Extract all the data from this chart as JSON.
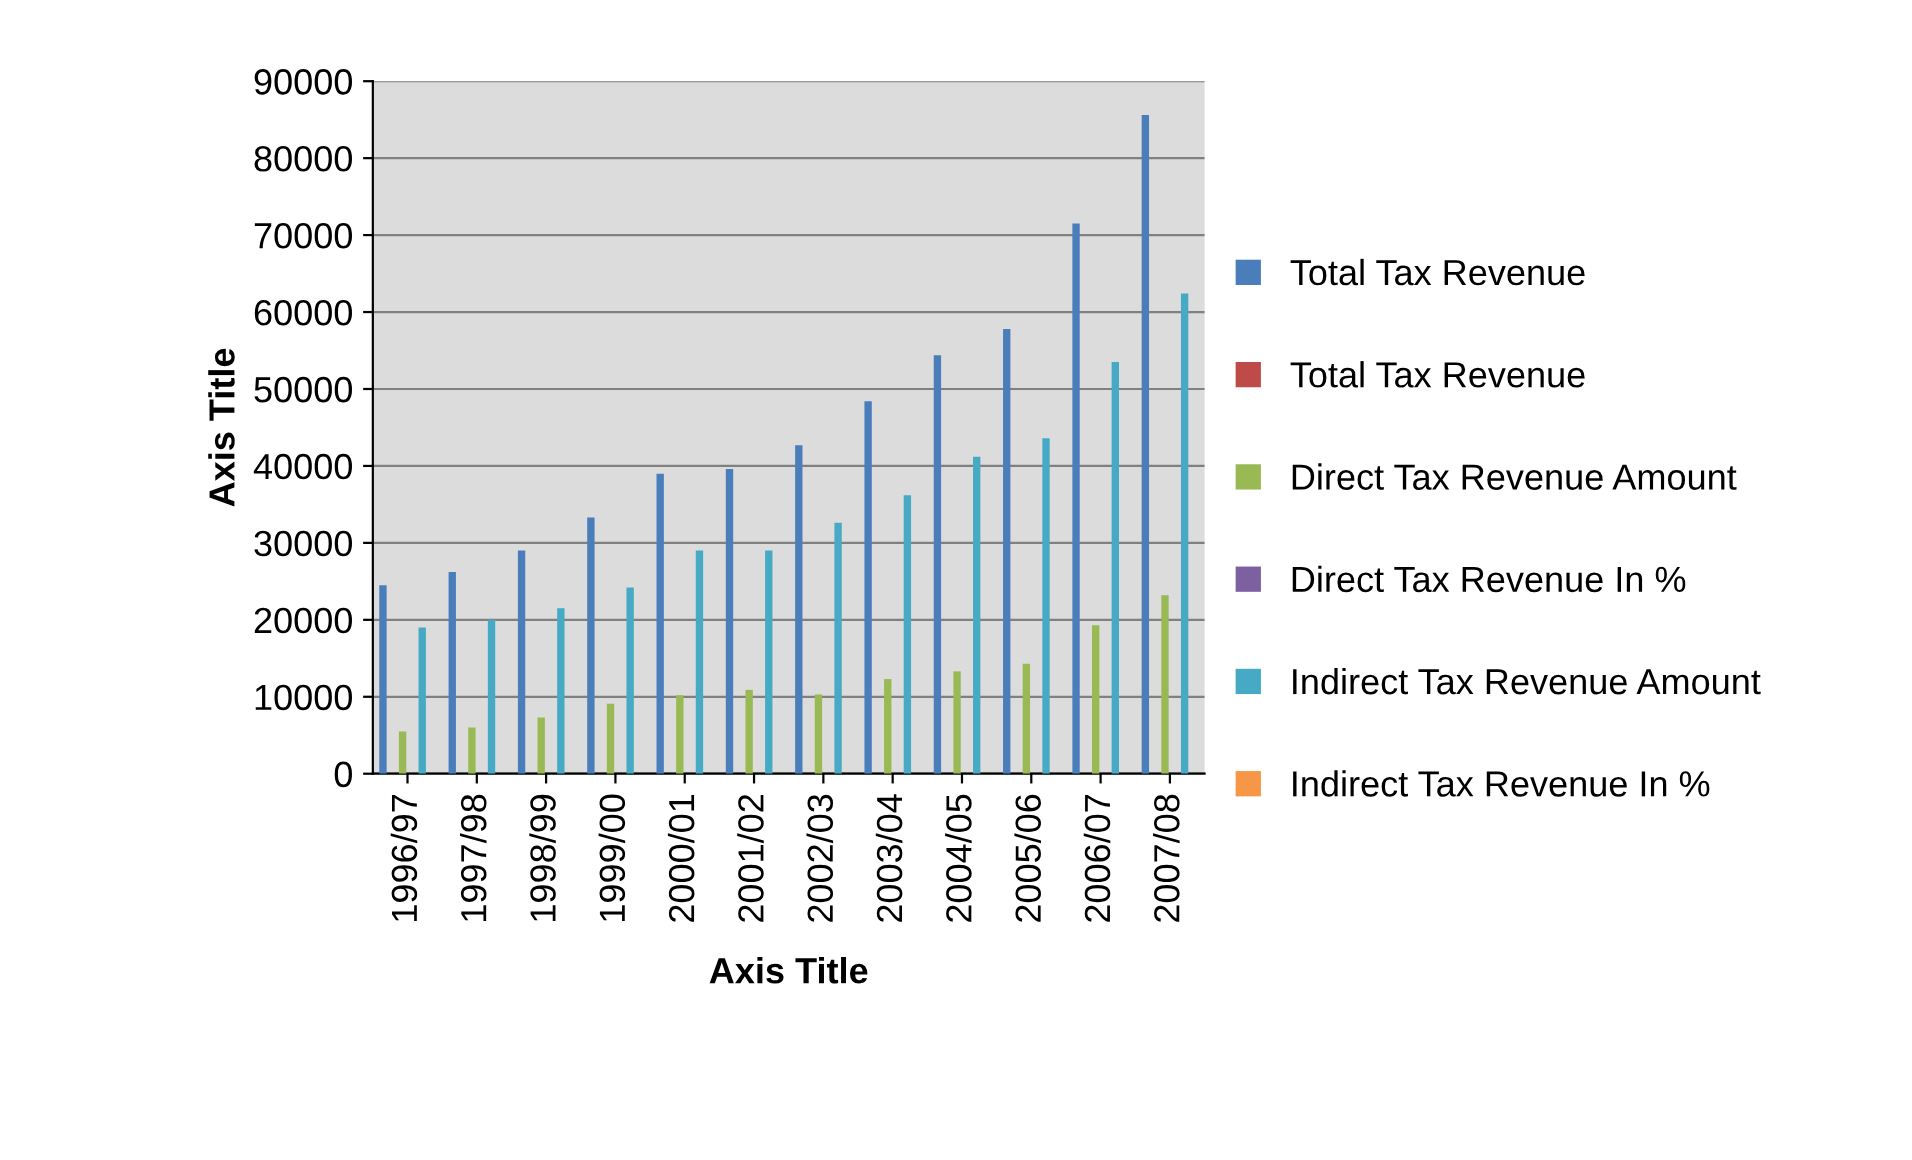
{
  "chart_data": {
    "type": "bar",
    "xlabel": "Axis Title",
    "ylabel": "Axis Title",
    "categories": [
      "1996/97",
      "1997/98",
      "1998/99",
      "1999/00",
      "2000/01",
      "2001/02",
      "2002/03",
      "2003/04",
      "2004/05",
      "2005/06",
      "2006/07",
      "2007/08"
    ],
    "series": [
      {
        "name": "Total Tax Revenue",
        "color": "#4a7ebb",
        "values": [
          24500,
          26200,
          29000,
          33300,
          39000,
          39600,
          42700,
          48400,
          54400,
          57800,
          71500,
          85600
        ]
      },
      {
        "name": "Total Tax Revenue",
        "color": "#be4b48",
        "values": [
          null,
          null,
          null,
          null,
          null,
          null,
          null,
          null,
          null,
          null,
          null,
          null
        ]
      },
      {
        "name": "Direct Tax Revenue Amount",
        "color": "#98b954",
        "values": [
          5500,
          6000,
          7300,
          9100,
          10200,
          10900,
          10300,
          12300,
          13300,
          14300,
          19300,
          23200
        ]
      },
      {
        "name": "Direct Tax Revenue In %",
        "color": "#7d60a0",
        "values": [
          null,
          null,
          null,
          null,
          null,
          null,
          null,
          null,
          null,
          null,
          null,
          null
        ]
      },
      {
        "name": "Indirect Tax Revenue Amount",
        "color": "#46aac5",
        "values": [
          19000,
          20000,
          21500,
          24200,
          29000,
          29000,
          32600,
          36200,
          41200,
          43600,
          53500,
          62400
        ]
      },
      {
        "name": "Indirect Tax Revenue In %",
        "color": "#f79646",
        "values": [
          null,
          null,
          null,
          null,
          null,
          null,
          null,
          null,
          null,
          null,
          null,
          null
        ]
      }
    ],
    "ylim": [
      0,
      90000
    ],
    "yticks": [
      0,
      10000,
      20000,
      30000,
      40000,
      50000,
      60000,
      70000,
      80000,
      90000
    ],
    "grid": "y",
    "legend": "right"
  }
}
